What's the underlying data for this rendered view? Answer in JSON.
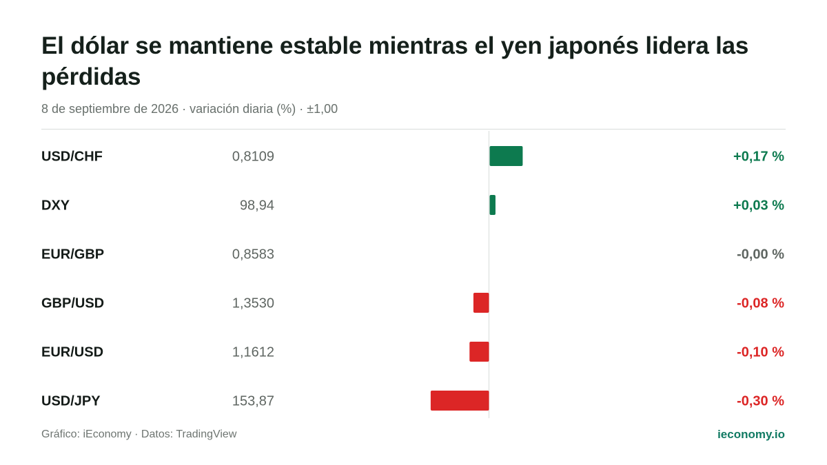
{
  "header": {
    "title": "El dólar se mantiene estable mientras el yen japonés lidera las pérdidas",
    "subtitle": "8 de septiembre de 2026 · variación diaria (%) · ±1,00"
  },
  "footer": {
    "credit": "Gráfico: iEconomy · Datos: TradingView",
    "brand": "ieconomy.io"
  },
  "colors": {
    "positive": "#0d7a4f",
    "negative": "#dc2626",
    "neutral": "#5f6662",
    "axis": "#d8dcda"
  },
  "chart_data": {
    "type": "bar",
    "orientation": "horizontal",
    "title": "El dólar se mantiene estable mientras el yen japonés lidera las pérdidas",
    "subtitle": "8 de septiembre de 2026 · variación diaria (%) · ±1,00",
    "xlim": [
      -1,
      1
    ],
    "grid": false,
    "categories": [
      "USD/CHF",
      "DXY",
      "EUR/GBP",
      "GBP/USD",
      "EUR/USD",
      "USD/JPY"
    ],
    "prices": [
      "0,8109",
      "98,94",
      "0,8583",
      "1,3530",
      "1,1612",
      "153,87"
    ],
    "values": [
      0.17,
      0.03,
      0.0,
      -0.08,
      -0.1,
      -0.3
    ],
    "value_labels": [
      "+0,17 %",
      "+0,03 %",
      "-0,00 %",
      "-0,08 %",
      "-0,10 %",
      "-0,30 %"
    ]
  }
}
